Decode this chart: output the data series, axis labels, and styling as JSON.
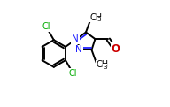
{
  "bg_color": "#ffffff",
  "bond_color": "#000000",
  "bond_width": 1.4,
  "atom_colors": {
    "C": "#000000",
    "N": "#1a1aff",
    "O": "#cc0000",
    "Cl": "#00aa00"
  },
  "font_size_main": 7.0,
  "font_size_sub": 5.2,
  "figsize": [
    1.92,
    1.21
  ],
  "dpi": 100,
  "xlim": [
    0.0,
    1.0
  ],
  "ylim": [
    0.05,
    0.95
  ]
}
